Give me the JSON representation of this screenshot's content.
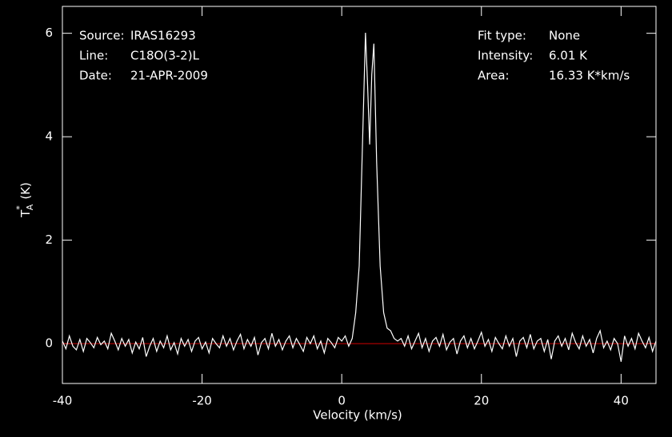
{
  "chart_data": {
    "type": "line",
    "x_label": "Velocity (km/s)",
    "y_label": {
      "main": "T",
      "sup": "*",
      "sub": "A",
      "unit": "(K)"
    },
    "info_left": [
      [
        "Source:",
        "IRAS16293"
      ],
      [
        "Line:",
        "C18O(3-2)L"
      ],
      [
        "Date:",
        "21-APR-2009"
      ]
    ],
    "info_right": [
      [
        "Fit type:",
        "None"
      ],
      [
        "Intensity:",
        "6.01 K"
      ],
      [
        "Area:",
        "16.33 K*km/s"
      ]
    ],
    "xlim": [
      -40,
      45
    ],
    "ylim": [
      -0.77,
      6.52
    ],
    "xticks": [
      -40,
      -20,
      0,
      20,
      40
    ],
    "yticks": [
      0,
      2,
      4,
      6
    ],
    "baseline": {
      "value": 0,
      "color": "#d00000"
    },
    "x": [
      -40,
      -39.5,
      -39,
      -38.5,
      -38,
      -37.5,
      -37,
      -36.5,
      -36,
      -35.5,
      -35,
      -34.5,
      -34,
      -33.5,
      -33,
      -32.5,
      -32,
      -31.5,
      -31,
      -30.5,
      -30,
      -29.5,
      -29,
      -28.5,
      -28,
      -27.5,
      -27,
      -26.5,
      -26,
      -25.5,
      -25,
      -24.5,
      -24,
      -23.5,
      -23,
      -22.5,
      -22,
      -21.5,
      -21,
      -20.5,
      -20,
      -19.5,
      -19,
      -18.5,
      -18,
      -17.5,
      -17,
      -16.5,
      -16,
      -15.5,
      -15,
      -14.5,
      -14,
      -13.5,
      -13,
      -12.5,
      -12,
      -11.5,
      -11,
      -10.5,
      -10,
      -9.5,
      -9,
      -8.5,
      -8,
      -7.5,
      -7,
      -6.5,
      -6,
      -5.5,
      -5,
      -4.5,
      -4,
      -3.5,
      -3,
      -2.5,
      -2,
      -1.5,
      -1,
      -0.5,
      0,
      0.5,
      1,
      1.5,
      2,
      2.5,
      3,
      3.4,
      3.7,
      4,
      4.3,
      4.6,
      5,
      5.5,
      6,
      6.5,
      7,
      7.5,
      8,
      8.5,
      9,
      9.5,
      10,
      10.5,
      11,
      11.5,
      12,
      12.5,
      13,
      13.5,
      14,
      14.5,
      15,
      15.5,
      16,
      16.5,
      17,
      17.5,
      18,
      18.5,
      19,
      19.5,
      20,
      20.5,
      21,
      21.5,
      22,
      22.5,
      23,
      23.5,
      24,
      24.5,
      25,
      25.5,
      26,
      26.5,
      27,
      27.5,
      28,
      28.5,
      29,
      29.5,
      30,
      30.5,
      31,
      31.5,
      32,
      32.5,
      33,
      33.5,
      34,
      34.5,
      35,
      35.5,
      36,
      36.5,
      37,
      37.5,
      38,
      38.5,
      39,
      39.5,
      40,
      40.5,
      41,
      41.5,
      42,
      42.5,
      43,
      43.5,
      44,
      44.5,
      45
    ],
    "series": [
      {
        "name": "spectrum",
        "color": "#ffffff",
        "values": [
          0.05,
          -0.1,
          0.15,
          -0.05,
          -0.12,
          0.08,
          -0.15,
          0.1,
          0.02,
          -0.08,
          0.12,
          -0.02,
          0.05,
          -0.1,
          0.2,
          0.05,
          -0.12,
          0.1,
          -0.05,
          0.08,
          -0.18,
          0.03,
          -0.1,
          0.12,
          -0.25,
          -0.05,
          0.1,
          -0.15,
          0.05,
          -0.08,
          0.15,
          -0.12,
          0.02,
          -0.2,
          0.1,
          -0.05,
          0.08,
          -0.15,
          0.05,
          0.12,
          -0.1,
          0.03,
          -0.18,
          0.1,
          0.0,
          -0.08,
          0.15,
          -0.05,
          0.1,
          -0.12,
          0.05,
          0.18,
          -0.1,
          0.08,
          -0.05,
          0.12,
          -0.22,
          0.02,
          0.1,
          -0.1,
          0.2,
          -0.05,
          0.08,
          -0.12,
          0.05,
          0.15,
          -0.08,
          0.1,
          -0.02,
          -0.15,
          0.12,
          0.0,
          0.15,
          -0.1,
          0.05,
          -0.18,
          0.1,
          0.02,
          -0.08,
          0.12,
          0.05,
          0.15,
          -0.05,
          0.1,
          0.6,
          1.5,
          4.0,
          6.01,
          5.0,
          3.85,
          5.2,
          5.8,
          3.5,
          1.5,
          0.6,
          0.3,
          0.25,
          0.1,
          0.05,
          0.1,
          -0.05,
          0.15,
          -0.1,
          0.05,
          0.2,
          -0.08,
          0.1,
          -0.15,
          0.05,
          0.12,
          -0.05,
          0.18,
          -0.12,
          0.03,
          0.1,
          -0.2,
          0.05,
          0.15,
          -0.08,
          0.1,
          -0.1,
          0.05,
          0.22,
          -0.05,
          0.08,
          -0.15,
          0.12,
          0.0,
          -0.1,
          0.15,
          -0.05,
          0.1,
          -0.25,
          0.05,
          0.12,
          -0.08,
          0.18,
          -0.1,
          0.05,
          0.1,
          -0.15,
          0.08,
          -0.3,
          0.05,
          0.15,
          -0.05,
          0.1,
          -0.12,
          0.2,
          0.02,
          -0.1,
          0.15,
          -0.05,
          0.08,
          -0.18,
          0.1,
          0.25,
          -0.08,
          0.05,
          -0.12,
          0.1,
          0.0,
          -0.35,
          0.15,
          -0.05,
          0.1,
          -0.1,
          0.2,
          0.05,
          -0.08,
          0.12,
          -0.15,
          0.05
        ]
      }
    ]
  }
}
